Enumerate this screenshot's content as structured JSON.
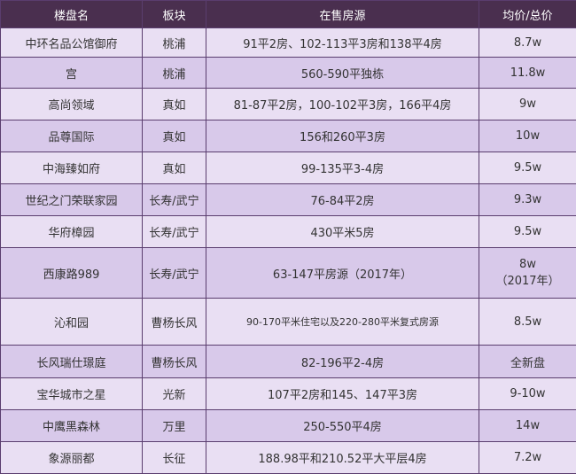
{
  "headers": [
    "楼盘名",
    "板块",
    "在售房源",
    "均价/总价"
  ],
  "rows": [
    {
      "name": "中环名品公馆御府",
      "area": "桃浦",
      "listings": "91平2房、102-113平3房和138平4房",
      "price": "8.7w"
    },
    {
      "name": "宫",
      "area": "桃浦",
      "listings": "560-590平独栋",
      "price": "11.8w"
    },
    {
      "name": "高尚领域",
      "area": "真如",
      "listings": "81-87平2房，100-102平3房，166平4房",
      "price": "9w"
    },
    {
      "name": "品尊国际",
      "area": "真如",
      "listings": "156和260平3房",
      "price": "10w"
    },
    {
      "name": "中海臻如府",
      "area": "真如",
      "listings": "99-135平3-4房",
      "price": "9.5w"
    },
    {
      "name": "世纪之门荣联家园",
      "area": "长寿/武宁",
      "listings": "76-84平2房",
      "price": "9.3w"
    },
    {
      "name": "华府樟园",
      "area": "长寿/武宁",
      "listings": "430平米5房",
      "price": "9.5w"
    },
    {
      "name": "西康路989",
      "area": "长寿/武宁",
      "listings": "63-147平房源（2017年）",
      "price": "8w",
      "price_note": "（2017年）"
    },
    {
      "name": "沁和园",
      "area": "曹杨长风",
      "listings": "90-170平米住宅以及220-280平米复式房源",
      "price": "8.5w"
    },
    {
      "name": "长风瑞仕璟庭",
      "area": "曹杨长风",
      "listings": "82-196平2-4房",
      "price": "全新盘"
    },
    {
      "name": "宝华城市之星",
      "area": "光新",
      "listings": "107平2房和145、147平3房",
      "price": "9-10w"
    },
    {
      "name": "中鹰黑森林",
      "area": "万里",
      "listings": "250-550平4房",
      "price": "14w"
    },
    {
      "name": "象源丽都",
      "area": "长征",
      "listings": "188.98平和210.52平大平层4房",
      "price": "7.2w"
    }
  ]
}
